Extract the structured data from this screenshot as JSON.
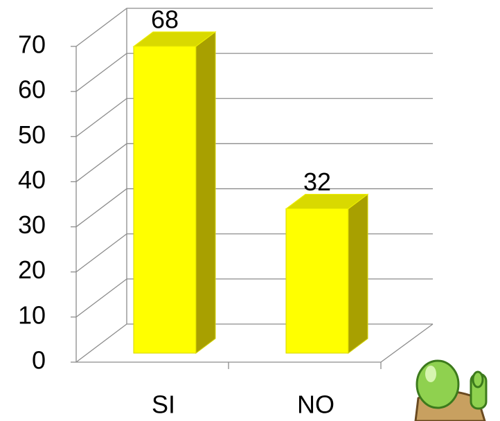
{
  "chart_data": {
    "type": "bar3d",
    "categories": [
      "SI",
      "NO"
    ],
    "values": [
      68,
      32
    ],
    "color": "#ffff00",
    "ylim": [
      0,
      70
    ],
    "yticks": [
      0,
      10,
      20,
      30,
      40,
      50,
      60,
      70
    ],
    "grid": true
  }
}
